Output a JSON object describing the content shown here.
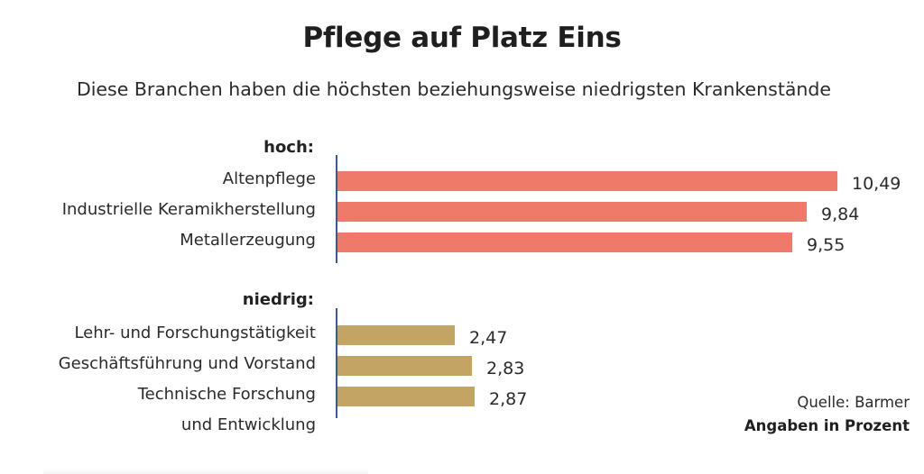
{
  "chart_data": {
    "type": "bar",
    "orientation": "horizontal",
    "title": "Pflege auf Platz Eins",
    "subtitle": "Diese Branchen haben die höchsten beziehungsweise niedrigsten Krankenstände",
    "xlabel": "",
    "ylabel": "",
    "xlim": [
      0,
      10.49
    ],
    "grid": false,
    "groups": [
      {
        "name": "hoch:",
        "color": "#f07a6a",
        "categories": [
          "Altenpflege",
          "Industrielle Keramikherstellung",
          "Metallerzeugung"
        ],
        "values": [
          10.49,
          9.84,
          9.55
        ],
        "value_labels": [
          "10,49",
          "9,84",
          "9,55"
        ]
      },
      {
        "name": "niedrig:",
        "color": "#c4a465",
        "categories": [
          "Lehr- und Forschungstätigkeit",
          "Geschäftsführung und Vorstand",
          "Technische Forschung und Entwicklung"
        ],
        "category_lines": [
          [
            "Lehr- und Forschungstätigkeit"
          ],
          [
            "Geschäftsführung und Vorstand"
          ],
          [
            "Technische Forschung",
            "und Entwicklung"
          ]
        ],
        "values": [
          2.47,
          2.83,
          2.87
        ],
        "value_labels": [
          "2,47",
          "2,83",
          "2,87"
        ]
      }
    ],
    "source": "Quelle: Barmer",
    "unit_note": "Angaben in Prozent"
  },
  "colors": {
    "high_bar": "#f07a6a",
    "low_bar": "#c4a465",
    "axis": "#3b5b8c"
  }
}
